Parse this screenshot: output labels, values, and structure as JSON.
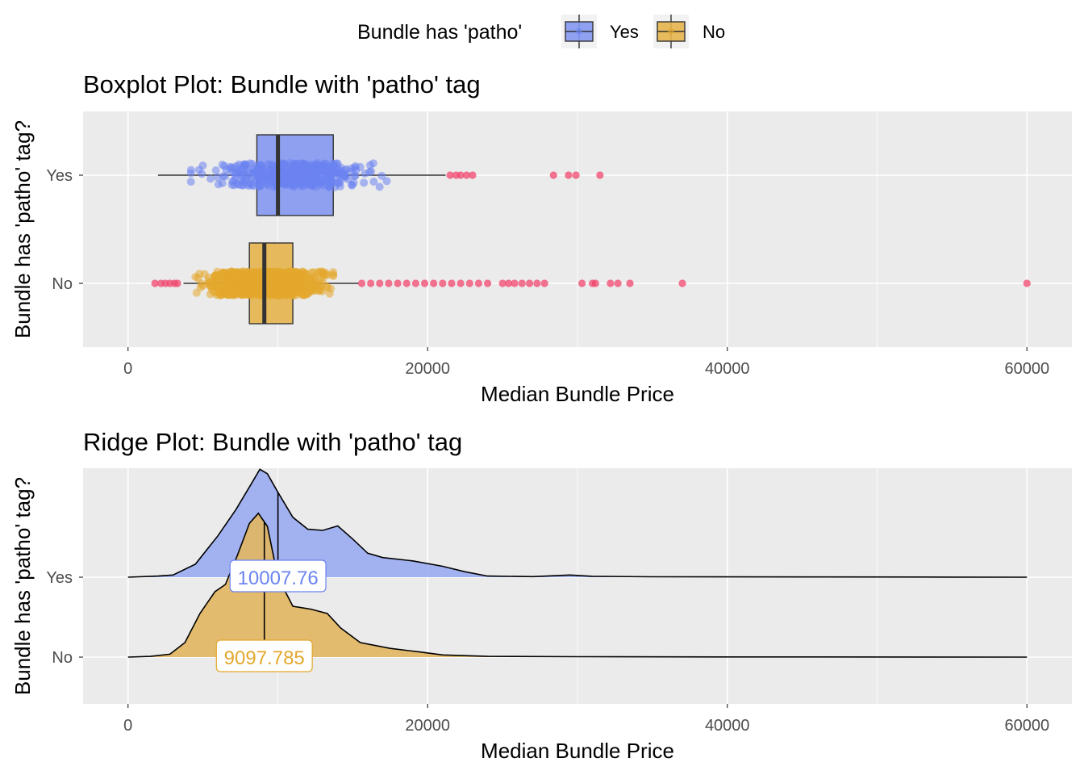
{
  "legend": {
    "title": "Bundle has 'patho'",
    "items": [
      {
        "label": "Yes",
        "color": "#6b83f0",
        "fill": "#8598f2"
      },
      {
        "label": "No",
        "color": "#e3a82e",
        "fill": "#e6b44d"
      }
    ]
  },
  "colors": {
    "panel_bg": "#ebebeb",
    "grid": "#ffffff",
    "outlier": "#f0466e",
    "yes": "#6b83f0",
    "no": "#e3a82e"
  },
  "chart_data": [
    {
      "type": "boxplot",
      "title": "Boxplot Plot: Bundle with 'patho' tag",
      "xlabel": "Median Bundle Price",
      "ylabel": "Bundle has 'patho' tag?",
      "xlim": [
        -3000,
        63000
      ],
      "xticks": [
        0,
        20000,
        40000,
        60000
      ],
      "xtick_labels": [
        "0",
        "20000",
        "40000",
        "60000"
      ],
      "categories": [
        "Yes",
        "No"
      ],
      "series": [
        {
          "name": "Yes",
          "whisker_low": 2000,
          "q1": 8600,
          "median": 10007.76,
          "q3": 13700,
          "whisker_high": 21200,
          "jitter_range": [
            4200,
            17500
          ],
          "outliers": [
            21500,
            21900,
            22200,
            22600,
            23000,
            28400,
            29400,
            29900,
            31500
          ]
        },
        {
          "name": "No",
          "whisker_low": 3700,
          "q1": 8100,
          "median": 9097.785,
          "q3": 11000,
          "whisker_high": 15400,
          "jitter_range": [
            4500,
            13700
          ],
          "outliers": [
            1800,
            2200,
            2500,
            2800,
            3100,
            3300,
            15600,
            16200,
            16800,
            17400,
            18000,
            18600,
            19200,
            19800,
            20400,
            21000,
            21600,
            22200,
            22800,
            23400,
            24000,
            25000,
            25400,
            25800,
            26300,
            26800,
            27300,
            27800,
            30300,
            31000,
            31200,
            32200,
            32700,
            33500,
            37000,
            60000
          ]
        }
      ]
    },
    {
      "type": "area",
      "title": "Ridge Plot: Bundle with 'patho' tag",
      "xlabel": "Median Bundle Price",
      "ylabel": "Bundle has 'patho' tag?",
      "xlim": [
        -3000,
        63000
      ],
      "xticks": [
        0,
        20000,
        40000,
        60000
      ],
      "xtick_labels": [
        "0",
        "20000",
        "40000",
        "60000"
      ],
      "categories": [
        "Yes",
        "No"
      ],
      "series": [
        {
          "name": "Yes",
          "median": 10007.76,
          "median_label": "10007.76",
          "density": [
            [
              0,
              0
            ],
            [
              2000,
              0.01
            ],
            [
              3000,
              0.02
            ],
            [
              4500,
              0.12
            ],
            [
              6000,
              0.38
            ],
            [
              7200,
              0.62
            ],
            [
              8200,
              0.85
            ],
            [
              8800,
              0.99
            ],
            [
              9300,
              0.95
            ],
            [
              10000,
              0.78
            ],
            [
              11000,
              0.55
            ],
            [
              12000,
              0.44
            ],
            [
              13000,
              0.43
            ],
            [
              14000,
              0.47
            ],
            [
              15000,
              0.35
            ],
            [
              16000,
              0.22
            ],
            [
              17000,
              0.18
            ],
            [
              19000,
              0.15
            ],
            [
              21000,
              0.1
            ],
            [
              22500,
              0.05
            ],
            [
              24000,
              0.01
            ],
            [
              27000,
              0.005
            ],
            [
              29500,
              0.02
            ],
            [
              31000,
              0.008
            ],
            [
              35000,
              0.004
            ],
            [
              45000,
              0.002
            ],
            [
              55000,
              0.001
            ],
            [
              60000,
              0
            ]
          ]
        },
        {
          "name": "No",
          "median": 9097.785,
          "median_label": "9097.785",
          "density": [
            [
              0,
              0
            ],
            [
              1500,
              0.005
            ],
            [
              2800,
              0.02
            ],
            [
              3800,
              0.1
            ],
            [
              4800,
              0.3
            ],
            [
              5800,
              0.45
            ],
            [
              6500,
              0.5
            ],
            [
              7300,
              0.7
            ],
            [
              8100,
              0.92
            ],
            [
              8700,
              0.99
            ],
            [
              9300,
              0.9
            ],
            [
              10000,
              0.55
            ],
            [
              11000,
              0.35
            ],
            [
              12200,
              0.33
            ],
            [
              13300,
              0.3
            ],
            [
              14200,
              0.2
            ],
            [
              15500,
              0.1
            ],
            [
              17500,
              0.06
            ],
            [
              19500,
              0.035
            ],
            [
              21000,
              0.015
            ],
            [
              24000,
              0.005
            ],
            [
              30000,
              0.003
            ],
            [
              40000,
              0.001
            ],
            [
              60000,
              0
            ]
          ]
        }
      ]
    }
  ]
}
